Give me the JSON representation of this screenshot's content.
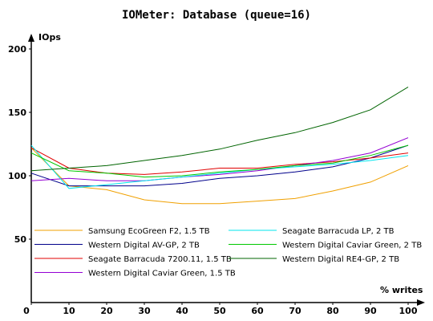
{
  "chart_data": {
    "type": "line",
    "title": "IOMeter: Database (queue=16)",
    "ylabel": "IOps",
    "xlabel": "% writes",
    "x": [
      0,
      10,
      20,
      30,
      40,
      50,
      60,
      70,
      80,
      90,
      100
    ],
    "xlim": [
      0,
      100
    ],
    "ylim": [
      0,
      200
    ],
    "xticks": [
      0,
      10,
      20,
      30,
      40,
      50,
      60,
      70,
      80,
      90,
      100
    ],
    "yticks": [
      50,
      100,
      150,
      200
    ],
    "grid": false,
    "legend_position": "bottom",
    "series": [
      {
        "name": "Samsung EcoGreen F2, 1.5 TB",
        "color": "#f0a000",
        "values": [
          122,
          92,
          89,
          81,
          78,
          78,
          80,
          82,
          88,
          95,
          108
        ]
      },
      {
        "name": "Western Digital AV-GP, 2 TB",
        "color": "#00008b",
        "values": [
          102,
          92,
          92,
          92,
          94,
          98,
          100,
          103,
          107,
          114,
          124
        ]
      },
      {
        "name": "Seagate Barracuda 7200.11, 1.5 TB",
        "color": "#e00000",
        "values": [
          122,
          106,
          102,
          101,
          103,
          106,
          106,
          109,
          111,
          114,
          118
        ]
      },
      {
        "name": "Western Digital Caviar Green, 1.5 TB",
        "color": "#9400d3",
        "values": [
          96,
          98,
          96,
          96,
          99,
          101,
          104,
          108,
          112,
          118,
          130
        ]
      },
      {
        "name": "Seagate Barracuda LP, 2 TB",
        "color": "#00e5ee",
        "values": [
          124,
          90,
          93,
          96,
          99,
          102,
          105,
          107,
          109,
          112,
          116
        ]
      },
      {
        "name": "Western Digital Caviar Green, 2 TB",
        "color": "#00c800",
        "values": [
          118,
          104,
          102,
          99,
          100,
          103,
          105,
          108,
          110,
          116,
          124
        ]
      },
      {
        "name": "Western Digital RE4-GP, 2 TB",
        "color": "#006400",
        "values": [
          104,
          106,
          108,
          112,
          116,
          121,
          128,
          134,
          142,
          152,
          170
        ]
      }
    ]
  }
}
